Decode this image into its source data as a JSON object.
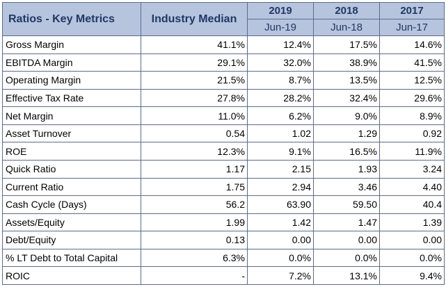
{
  "table": {
    "header": {
      "title": "Ratios - Key Metrics",
      "median": "Industry Median",
      "years": [
        "2019",
        "2018",
        "2017"
      ],
      "periods": [
        "Jun-19",
        "Jun-18",
        "Jun-17"
      ]
    },
    "rows": [
      {
        "metric": "Gross Margin",
        "median": "41.1%",
        "v2019": "12.4%",
        "v2018": "17.5%",
        "v2017": "14.6%"
      },
      {
        "metric": "EBITDA Margin",
        "median": "29.1%",
        "v2019": "32.0%",
        "v2018": "38.9%",
        "v2017": "41.5%"
      },
      {
        "metric": "Operating Margin",
        "median": "21.5%",
        "v2019": "8.7%",
        "v2018": "13.5%",
        "v2017": "12.5%"
      },
      {
        "metric": "Effective Tax Rate",
        "median": "27.8%",
        "v2019": "28.2%",
        "v2018": "32.4%",
        "v2017": "29.6%"
      },
      {
        "metric": "Net Margin",
        "median": "11.0%",
        "v2019": "6.2%",
        "v2018": "9.0%",
        "v2017": "8.9%"
      },
      {
        "metric": "Asset Turnover",
        "median": "0.54",
        "v2019": "1.02",
        "v2018": "1.29",
        "v2017": "0.92"
      },
      {
        "metric": "ROE",
        "median": "12.3%",
        "v2019": "9.1%",
        "v2018": "16.5%",
        "v2017": "11.9%"
      },
      {
        "metric": "Quick Ratio",
        "median": "1.17",
        "v2019": "2.15",
        "v2018": "1.93",
        "v2017": "3.24"
      },
      {
        "metric": "Current Ratio",
        "median": "1.75",
        "v2019": "2.94",
        "v2018": "3.46",
        "v2017": "4.40"
      },
      {
        "metric": "Cash Cycle (Days)",
        "median": "56.2",
        "v2019": "63.90",
        "v2018": "59.50",
        "v2017": "40.4"
      },
      {
        "metric": "Assets/Equity",
        "median": "1.99",
        "v2019": "1.42",
        "v2018": "1.47",
        "v2017": "1.39"
      },
      {
        "metric": "Debt/Equity",
        "median": "0.13",
        "v2019": "0.00",
        "v2018": "0.00",
        "v2017": "0.00"
      },
      {
        "metric": "% LT Debt to Total Capital",
        "median": "6.3%",
        "v2019": "0.0%",
        "v2018": "0.0%",
        "v2017": "0.0%"
      },
      {
        "metric": "ROIC",
        "median": "-",
        "v2019": "7.2%",
        "v2018": "13.1%",
        "v2017": "9.4%"
      }
    ]
  },
  "colors": {
    "header_bg": "#b7c4de",
    "header_text": "#1f3864",
    "border": "#5b6b8a"
  }
}
